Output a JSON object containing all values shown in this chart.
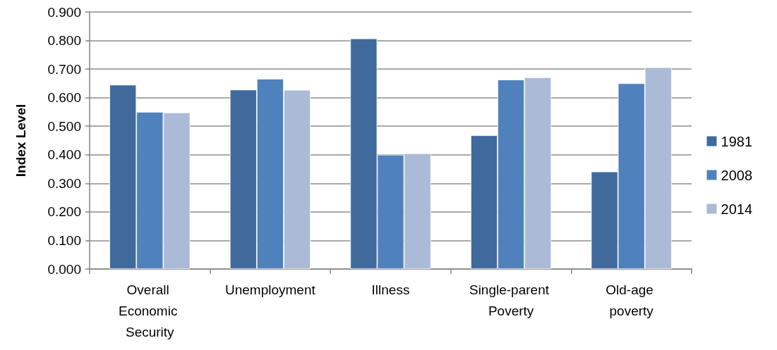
{
  "chart_data": {
    "type": "bar",
    "ylabel": "Index Level",
    "categories": [
      "Overall Economic Security",
      "Unemployment",
      "Illness",
      "Single-parent Poverty",
      "Old-age poverty"
    ],
    "series": [
      {
        "name": "1981",
        "color": "#406a9c",
        "values": [
          0.645,
          0.628,
          0.807,
          0.468,
          0.341
        ]
      },
      {
        "name": "2008",
        "color": "#4f81bd",
        "values": [
          0.55,
          0.666,
          0.4,
          0.663,
          0.65
        ]
      },
      {
        "name": "2014",
        "color": "#aabad7",
        "values": [
          0.548,
          0.627,
          0.405,
          0.671,
          0.706
        ]
      }
    ],
    "ylim": [
      0,
      0.9
    ],
    "yticks": [
      {
        "value": 0,
        "label": "0.000"
      },
      {
        "value": 0.1,
        "label": "0.100"
      },
      {
        "value": 0.2,
        "label": "0.200"
      },
      {
        "value": 0.3,
        "label": "0.300"
      },
      {
        "value": 0.4,
        "label": "0.400"
      },
      {
        "value": 0.5,
        "label": "0.500"
      },
      {
        "value": 0.6,
        "label": "0.600"
      },
      {
        "value": 0.7,
        "label": "0.700"
      },
      {
        "value": 0.8,
        "label": "0.800"
      },
      {
        "value": 0.9,
        "label": "0.900"
      }
    ],
    "grid": true,
    "legend": "right"
  }
}
